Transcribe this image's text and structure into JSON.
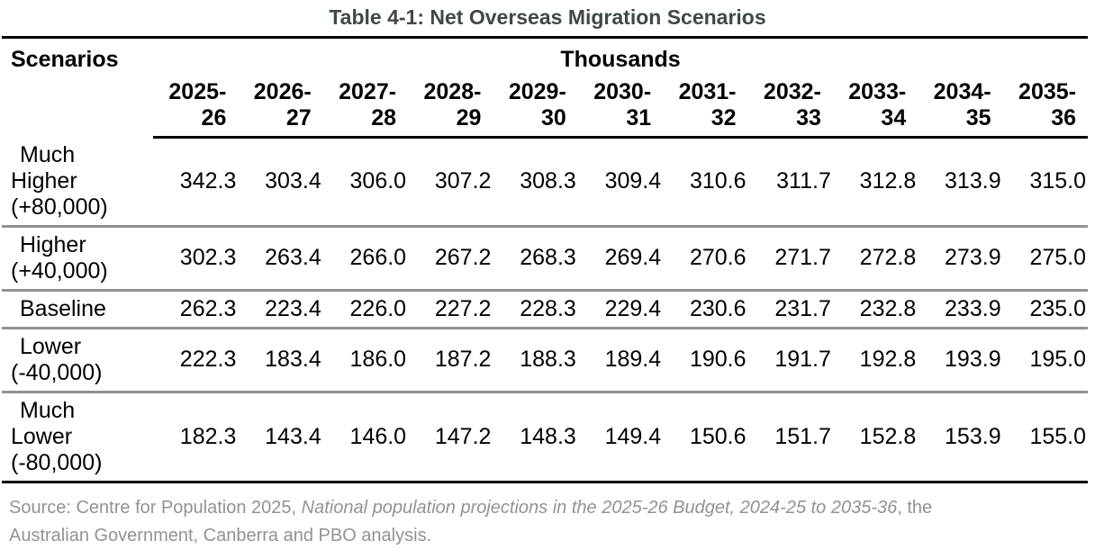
{
  "title": "Table 4-1: Net Overseas Migration Scenarios",
  "table": {
    "scenarios_header": "Scenarios",
    "units_header": "Thousands",
    "year_columns": [
      "2025-\n26",
      "2026-\n27",
      "2027-\n28",
      "2028-\n29",
      "2029-\n30",
      "2030-\n31",
      "2031-\n32",
      "2032-\n33",
      "2033-\n34",
      "2034-\n35",
      "2035-\n36"
    ],
    "rows": [
      {
        "label": "Much\nHigher\n(+80,000)",
        "values": [
          "342.3",
          "303.4",
          "306.0",
          "307.2",
          "308.3",
          "309.4",
          "310.6",
          "311.7",
          "312.8",
          "313.9",
          "315.0"
        ]
      },
      {
        "label": "Higher\n(+40,000)",
        "values": [
          "302.3",
          "263.4",
          "266.0",
          "267.2",
          "268.3",
          "269.4",
          "270.6",
          "271.7",
          "272.8",
          "273.9",
          "275.0"
        ]
      },
      {
        "label": "Baseline",
        "values": [
          "262.3",
          "223.4",
          "226.0",
          "227.2",
          "228.3",
          "229.4",
          "230.6",
          "231.7",
          "232.8",
          "233.9",
          "235.0"
        ]
      },
      {
        "label": "Lower\n(-40,000)",
        "values": [
          "222.3",
          "183.4",
          "186.0",
          "187.2",
          "188.3",
          "189.4",
          "190.6",
          "191.7",
          "192.8",
          "193.9",
          "195.0"
        ]
      },
      {
        "label": "Much\nLower\n(-80,000)",
        "values": [
          "182.3",
          "143.4",
          "146.0",
          "147.2",
          "148.3",
          "149.4",
          "150.6",
          "151.7",
          "152.8",
          "153.9",
          "155.0"
        ]
      }
    ]
  },
  "source": {
    "prefix": "Source: Centre for Population 2025, ",
    "italic": "National population projections in the 2025-26 Budget, 2024-25 to 2035-36",
    "suffix": ", the\nAustralian Government, Canberra and PBO analysis."
  },
  "colors": {
    "title": "#404a44",
    "text": "#000000",
    "row_separator": "#919191",
    "table_rule": "#000000",
    "source_text": "#8f9397"
  }
}
